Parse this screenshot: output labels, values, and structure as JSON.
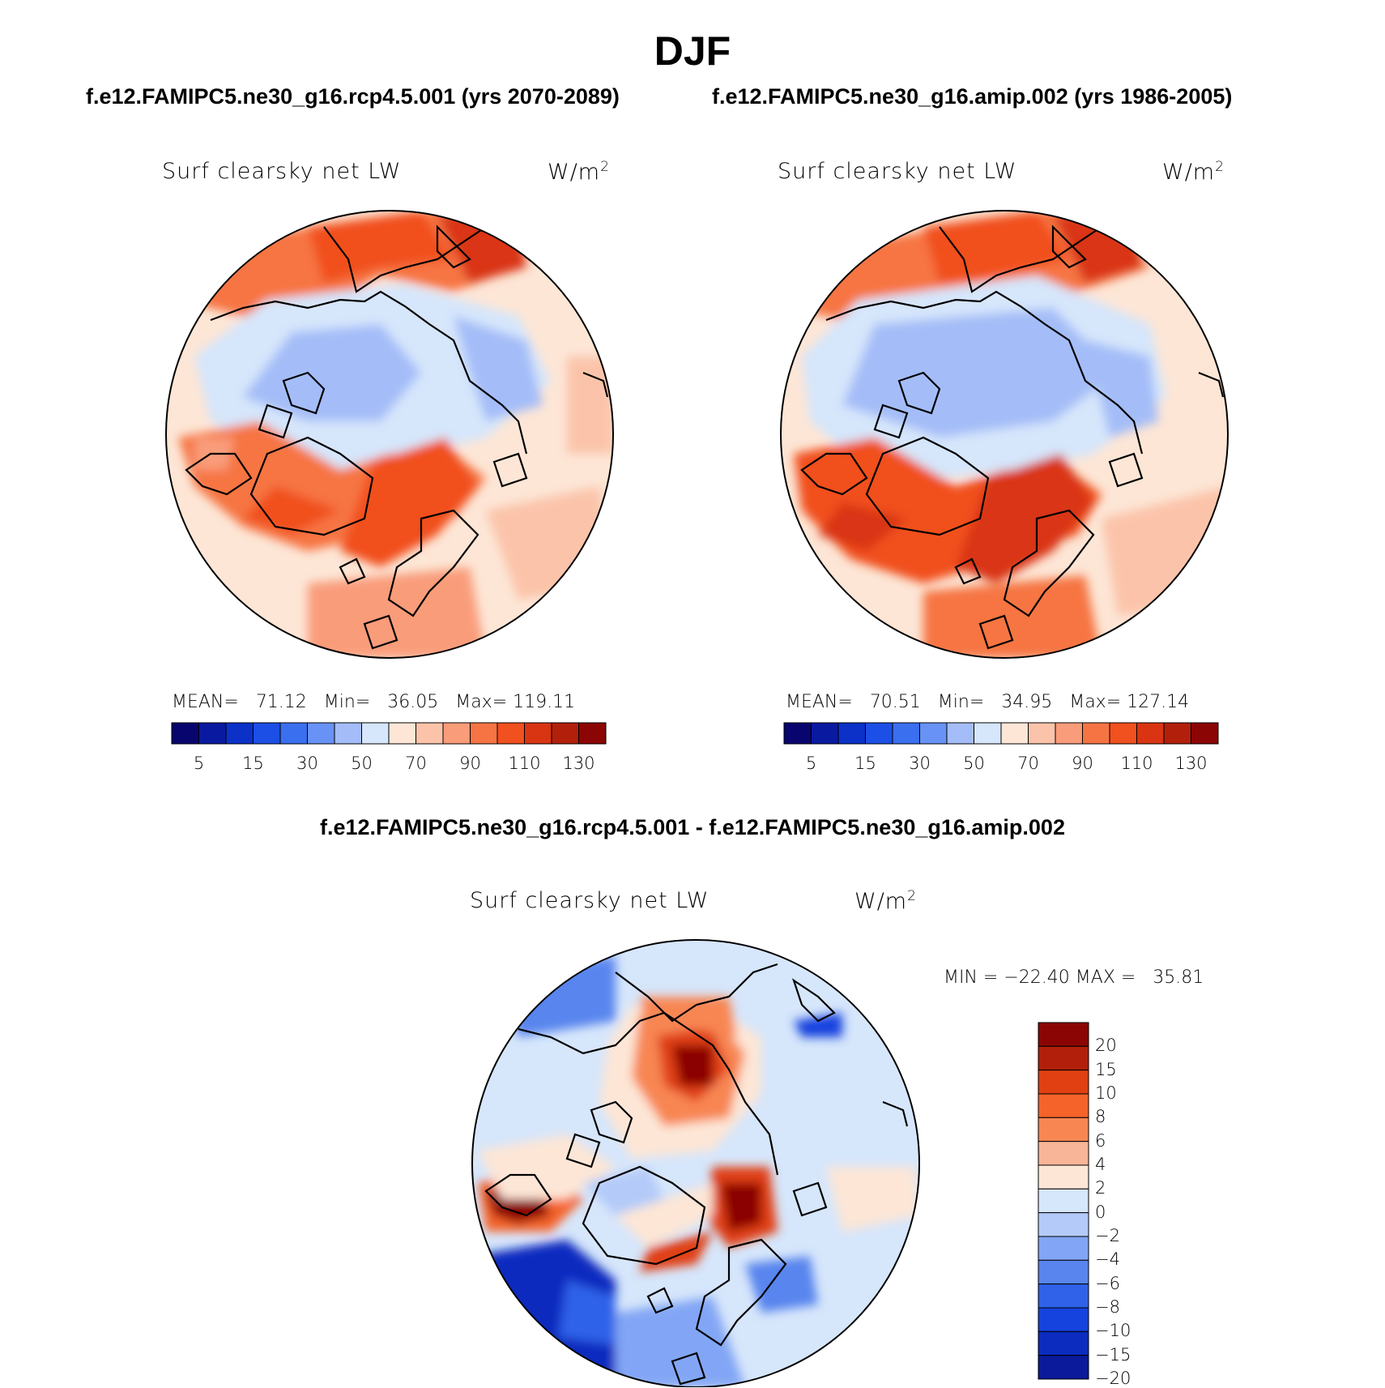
{
  "figure": {
    "title": "DJF",
    "case_titles": [
      "f.e12.FAMIPC5.ne30_g16.rcp4.5.001 (yrs 2070-2089)",
      "f.e12.FAMIPC5.ne30_g16.amip.002 (yrs 1986-2005)"
    ],
    "diff_title": "f.e12.FAMIPC5.ne30_g16.rcp4.5.001 - f.e12.FAMIPC5.ne30_g16.amip.002"
  },
  "panels": [
    {
      "variable": "Surf clearsky net LW",
      "units_base": "W/m",
      "units_exp": "2",
      "mean_label": "MEAN=",
      "mean": "71.12",
      "min_label": "Min=",
      "min": "36.05",
      "max_label": "Max=",
      "max": "119.11"
    },
    {
      "variable": "Surf clearsky net LW",
      "units_base": "W/m",
      "units_exp": "2",
      "mean_label": "MEAN=",
      "mean": "70.51",
      "min_label": "Min=",
      "min": "34.95",
      "max_label": "Max=",
      "max": "127.14"
    }
  ],
  "diff_panel": {
    "variable": "Surf clearsky net LW",
    "units_base": "W/m",
    "units_exp": "2",
    "min_label": "MIN =",
    "min": "−22.40",
    "max_label": "MAX =",
    "max": "35.81"
  },
  "colorbar_abs": {
    "colors": [
      "#08056e",
      "#0a1aa0",
      "#0b31c9",
      "#1c4fe6",
      "#3a6ff0",
      "#6892f5",
      "#a4bdf8",
      "#d6e6fb",
      "#fde6d6",
      "#fbc4aa",
      "#f99c7a",
      "#f67443",
      "#f1501f",
      "#d93512",
      "#b2200b",
      "#8b0504"
    ],
    "tick_labels": [
      "5",
      "15",
      "30",
      "50",
      "70",
      "90",
      "110",
      "130"
    ]
  },
  "colorbar_diff": {
    "colors": [
      "#8b0504",
      "#b2200b",
      "#e04012",
      "#f5632a",
      "#f88653",
      "#f9b597",
      "#fde6d6",
      "#d6e6fb",
      "#b4cbf9",
      "#82a6f5",
      "#5885ee",
      "#2f62e8",
      "#1543de",
      "#0b2cbf",
      "#0a1a9a"
    ],
    "tick_labels": [
      "20",
      "15",
      "10",
      "8",
      "6",
      "4",
      "2",
      "0",
      "−2",
      "−4",
      "−6",
      "−8",
      "−10",
      "−15",
      "−20"
    ]
  },
  "legend_colors": {
    "land_outline": "#000000",
    "background": "#ffffff"
  }
}
